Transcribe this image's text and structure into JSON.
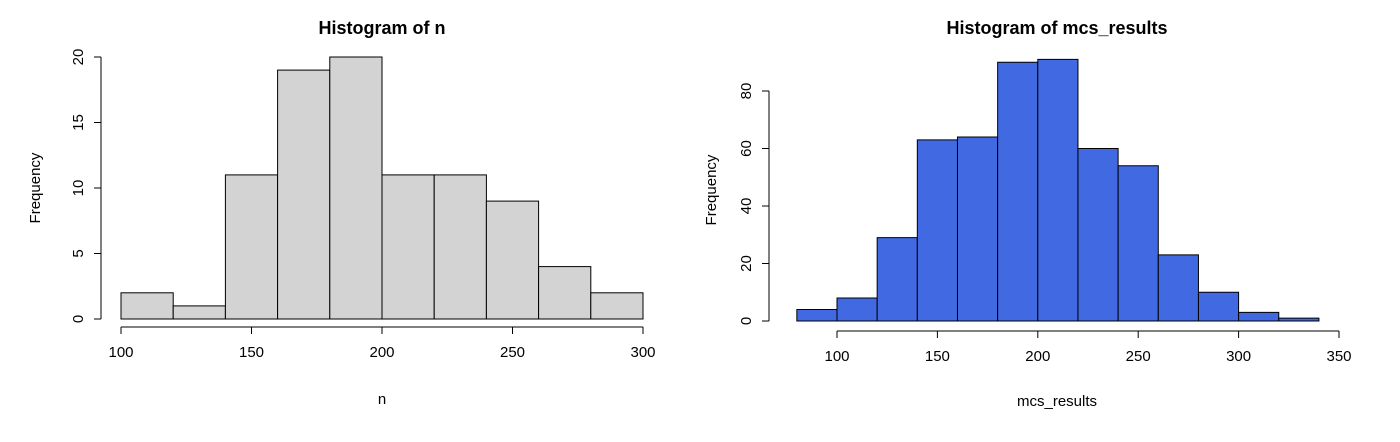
{
  "chart_data": [
    {
      "type": "bar",
      "subtype": "histogram",
      "title": "Histogram of n",
      "xlabel": "n",
      "ylabel": "Frequency",
      "bar_color": "#d3d3d3",
      "bin_edges": [
        100,
        120,
        140,
        160,
        180,
        200,
        220,
        240,
        260,
        280,
        300
      ],
      "values": [
        2,
        1,
        11,
        19,
        20,
        11,
        11,
        9,
        4,
        2
      ],
      "xlim": [
        100,
        300
      ],
      "ylim": [
        0,
        20
      ],
      "x_ticks": [
        100,
        150,
        200,
        250,
        300
      ],
      "y_ticks": [
        0,
        5,
        10,
        15,
        20
      ],
      "grid": false
    },
    {
      "type": "bar",
      "subtype": "histogram",
      "title": "Histogram of mcs_results",
      "xlabel": "mcs_results",
      "ylabel": "Frequency",
      "bar_color": "#4169e1",
      "bin_edges": [
        80,
        100,
        120,
        140,
        160,
        180,
        200,
        220,
        240,
        260,
        280,
        300,
        320,
        340
      ],
      "values": [
        4,
        8,
        29,
        63,
        64,
        90,
        91,
        60,
        54,
        23,
        10,
        3,
        1
      ],
      "xlim": [
        100,
        350
      ],
      "ylim": [
        0,
        80
      ],
      "x_ticks": [
        100,
        150,
        200,
        250,
        300,
        350
      ],
      "y_ticks": [
        0,
        20,
        40,
        60,
        80
      ],
      "grid": false
    }
  ]
}
